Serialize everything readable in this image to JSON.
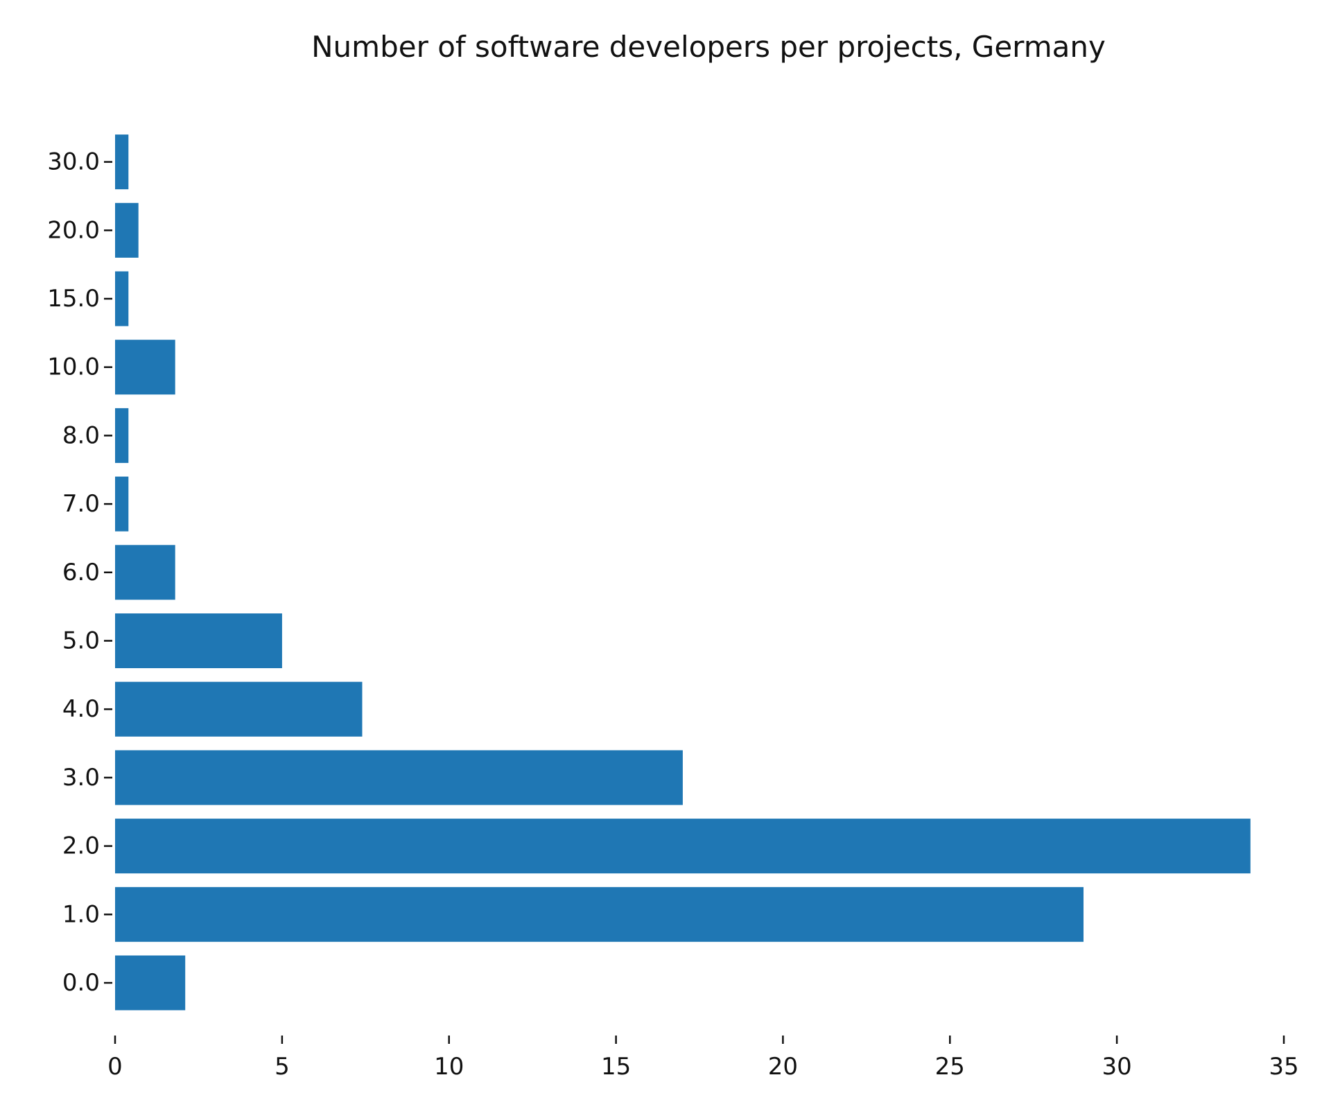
{
  "chart_data": {
    "type": "bar",
    "orientation": "horizontal",
    "title": "Number of software developers per projects, Germany",
    "xlabel": "",
    "ylabel": "",
    "categories": [
      "0.0",
      "1.0",
      "2.0",
      "3.0",
      "4.0",
      "5.0",
      "6.0",
      "7.0",
      "8.0",
      "10.0",
      "15.0",
      "20.0",
      "30.0"
    ],
    "values": [
      2.1,
      29,
      34,
      17,
      7.4,
      5,
      1.8,
      0.4,
      0.4,
      1.8,
      0.4,
      0.7,
      0.4
    ],
    "xlim": [
      0,
      35
    ],
    "xticks": [
      "0",
      "5",
      "10",
      "15",
      "20",
      "25",
      "30",
      "35"
    ],
    "grid": false,
    "legend": "none",
    "bar_color": "#1f77b4"
  }
}
